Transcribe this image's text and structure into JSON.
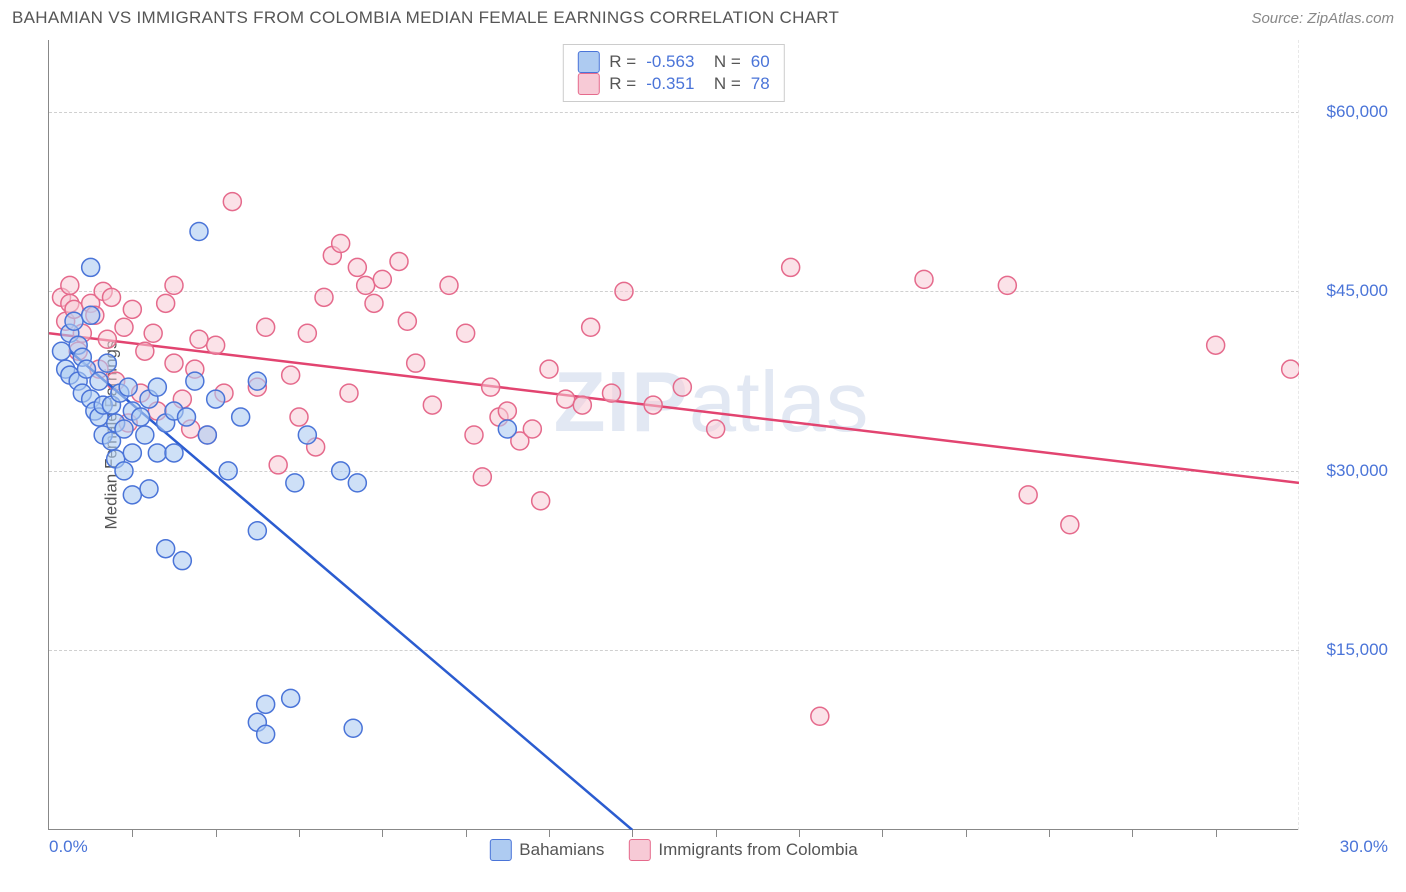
{
  "title": "BAHAMIAN VS IMMIGRANTS FROM COLOMBIA MEDIAN FEMALE EARNINGS CORRELATION CHART",
  "source": "Source: ZipAtlas.com",
  "watermark": {
    "zip": "ZIP",
    "atlas": "atlas"
  },
  "chart": {
    "type": "scatter",
    "ylabel": "Median Female Earnings",
    "xlim": [
      0,
      30
    ],
    "ylim": [
      0,
      66000
    ],
    "xtick_major": [
      0,
      30
    ],
    "xtick_labels": [
      "0.0%",
      "30.0%"
    ],
    "xtick_minor_step": 2,
    "ytick_major": [
      15000,
      30000,
      45000,
      60000
    ],
    "ytick_labels": [
      "$15,000",
      "$30,000",
      "$45,000",
      "$60,000"
    ],
    "grid_color": "#d0d0d0",
    "background_color": "#ffffff",
    "axis_color": "#888888",
    "tick_label_color": "#4a74d8",
    "label_color": "#555555",
    "point_radius": 9,
    "point_stroke_width": 1.5,
    "trendline_width": 2.5,
    "legend_top": [
      {
        "swatch_fill": "#aecbf1",
        "swatch_stroke": "#4a74d8",
        "r": "-0.563",
        "n": "60"
      },
      {
        "swatch_fill": "#f7cad6",
        "swatch_stroke": "#e56a8c",
        "r": "-0.351",
        "n": "78"
      }
    ],
    "legend_bottom": [
      {
        "swatch_fill": "#aecbf1",
        "swatch_stroke": "#4a74d8",
        "label": "Bahamians"
      },
      {
        "swatch_fill": "#f7cad6",
        "swatch_stroke": "#e56a8c",
        "label": "Immigrants from Colombia"
      }
    ],
    "series": [
      {
        "name": "Bahamians",
        "fill": "#aecbf1",
        "stroke": "#4a74d8",
        "fill_opacity": 0.6,
        "trendline": {
          "x1": 0.5,
          "y1": 40000,
          "x2": 14,
          "y2": 0,
          "color": "#2b5cd0"
        },
        "points": [
          [
            0.3,
            40000
          ],
          [
            0.4,
            38500
          ],
          [
            0.5,
            38000
          ],
          [
            0.5,
            41500
          ],
          [
            0.6,
            42500
          ],
          [
            0.7,
            40500
          ],
          [
            0.7,
            37500
          ],
          [
            0.8,
            36500
          ],
          [
            0.8,
            39500
          ],
          [
            0.9,
            38500
          ],
          [
            1.0,
            36000
          ],
          [
            1.0,
            43000
          ],
          [
            1.0,
            47000
          ],
          [
            1.1,
            35000
          ],
          [
            1.2,
            34500
          ],
          [
            1.2,
            37500
          ],
          [
            1.3,
            33000
          ],
          [
            1.3,
            35500
          ],
          [
            1.4,
            39000
          ],
          [
            1.5,
            35500
          ],
          [
            1.5,
            32500
          ],
          [
            1.6,
            34000
          ],
          [
            1.6,
            31000
          ],
          [
            1.7,
            36500
          ],
          [
            1.8,
            33500
          ],
          [
            1.8,
            30000
          ],
          [
            1.9,
            37000
          ],
          [
            2.0,
            31500
          ],
          [
            2.0,
            35000
          ],
          [
            2.0,
            28000
          ],
          [
            2.2,
            34500
          ],
          [
            2.3,
            33000
          ],
          [
            2.4,
            36000
          ],
          [
            2.4,
            28500
          ],
          [
            2.6,
            31500
          ],
          [
            2.6,
            37000
          ],
          [
            2.8,
            34000
          ],
          [
            2.8,
            23500
          ],
          [
            3.0,
            31500
          ],
          [
            3.0,
            35000
          ],
          [
            3.2,
            22500
          ],
          [
            3.3,
            34500
          ],
          [
            3.5,
            37500
          ],
          [
            3.6,
            50000
          ],
          [
            3.8,
            33000
          ],
          [
            4.0,
            36000
          ],
          [
            4.3,
            30000
          ],
          [
            4.6,
            34500
          ],
          [
            5.0,
            37500
          ],
          [
            5.0,
            25000
          ],
          [
            5.0,
            9000
          ],
          [
            5.2,
            8000
          ],
          [
            5.2,
            10500
          ],
          [
            5.8,
            11000
          ],
          [
            5.9,
            29000
          ],
          [
            6.2,
            33000
          ],
          [
            7.0,
            30000
          ],
          [
            7.3,
            8500
          ],
          [
            7.4,
            29000
          ],
          [
            11.0,
            33500
          ]
        ]
      },
      {
        "name": "Immigrants from Colombia",
        "fill": "#f7cad6",
        "stroke": "#e56a8c",
        "fill_opacity": 0.55,
        "trendline": {
          "x1": 0,
          "y1": 41500,
          "x2": 30,
          "y2": 29000,
          "color": "#e24470"
        },
        "points": [
          [
            0.3,
            44500
          ],
          [
            0.4,
            42500
          ],
          [
            0.5,
            44000
          ],
          [
            0.5,
            45500
          ],
          [
            0.6,
            43500
          ],
          [
            0.7,
            40000
          ],
          [
            0.8,
            41500
          ],
          [
            1.0,
            44000
          ],
          [
            1.1,
            43000
          ],
          [
            1.2,
            38500
          ],
          [
            1.3,
            45000
          ],
          [
            1.4,
            41000
          ],
          [
            1.5,
            44500
          ],
          [
            1.6,
            37500
          ],
          [
            1.8,
            42000
          ],
          [
            1.9,
            34000
          ],
          [
            2.0,
            43500
          ],
          [
            2.2,
            36500
          ],
          [
            2.3,
            40000
          ],
          [
            2.5,
            41500
          ],
          [
            2.6,
            35000
          ],
          [
            2.8,
            44000
          ],
          [
            3.0,
            45500
          ],
          [
            3.0,
            39000
          ],
          [
            3.2,
            36000
          ],
          [
            3.4,
            33500
          ],
          [
            3.5,
            38500
          ],
          [
            3.6,
            41000
          ],
          [
            3.8,
            33000
          ],
          [
            4.0,
            40500
          ],
          [
            4.2,
            36500
          ],
          [
            4.4,
            52500
          ],
          [
            5.0,
            37000
          ],
          [
            5.2,
            42000
          ],
          [
            5.5,
            30500
          ],
          [
            5.8,
            38000
          ],
          [
            6.0,
            34500
          ],
          [
            6.2,
            41500
          ],
          [
            6.4,
            32000
          ],
          [
            6.6,
            44500
          ],
          [
            6.8,
            48000
          ],
          [
            7.0,
            49000
          ],
          [
            7.2,
            36500
          ],
          [
            7.4,
            47000
          ],
          [
            7.6,
            45500
          ],
          [
            7.8,
            44000
          ],
          [
            8.0,
            46000
          ],
          [
            8.4,
            47500
          ],
          [
            8.6,
            42500
          ],
          [
            8.8,
            39000
          ],
          [
            9.2,
            35500
          ],
          [
            9.6,
            45500
          ],
          [
            10.0,
            41500
          ],
          [
            10.2,
            33000
          ],
          [
            10.4,
            29500
          ],
          [
            10.6,
            37000
          ],
          [
            10.8,
            34500
          ],
          [
            11.0,
            35000
          ],
          [
            11.3,
            32500
          ],
          [
            11.6,
            33500
          ],
          [
            11.8,
            27500
          ],
          [
            12.0,
            38500
          ],
          [
            12.4,
            36000
          ],
          [
            12.8,
            35500
          ],
          [
            13.0,
            42000
          ],
          [
            13.5,
            36500
          ],
          [
            13.8,
            45000
          ],
          [
            14.5,
            35500
          ],
          [
            15.2,
            37000
          ],
          [
            16.0,
            33500
          ],
          [
            17.8,
            47000
          ],
          [
            18.5,
            9500
          ],
          [
            21.0,
            46000
          ],
          [
            23.0,
            45500
          ],
          [
            23.5,
            28000
          ],
          [
            24.5,
            25500
          ],
          [
            28.0,
            40500
          ],
          [
            29.8,
            38500
          ]
        ]
      }
    ]
  }
}
